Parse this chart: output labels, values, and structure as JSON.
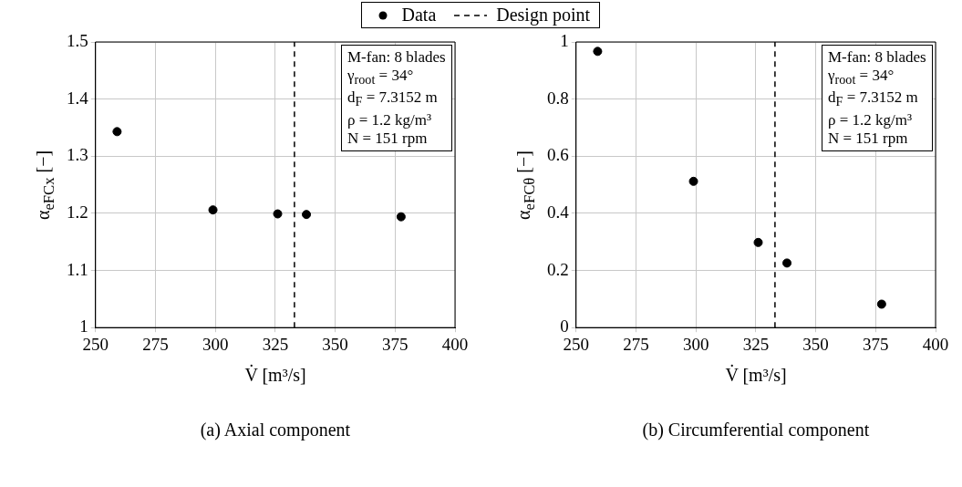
{
  "chart_data": [
    {
      "type": "scatter",
      "title": "(a) Axial component",
      "xlabel": "V̇ [m³/s]",
      "ylabel": "α$_{eFCx}$ [−]",
      "x": [
        259,
        299,
        326,
        338,
        377.5
      ],
      "series": [
        {
          "name": "Data",
          "color": "#000000",
          "values": [
            1.343,
            1.206,
            1.199,
            1.198,
            1.194
          ]
        }
      ],
      "xlim": [
        250,
        400
      ],
      "xticks": [
        250,
        275,
        300,
        325,
        350,
        375,
        400
      ],
      "ylim": [
        1,
        1.5
      ],
      "yticks": [
        1,
        1.1,
        1.2,
        1.3,
        1.4,
        1.5
      ],
      "ref_lines": [
        {
          "axis": "x",
          "value": 333,
          "label": "Design point",
          "color": "#000000",
          "line_style": "dashed"
        }
      ],
      "annotations": [
        "M-fan: 8 blades\nγ$_{root}$ = 34°\nd$_{F}$ = 7.3152 m\nρ = 1.2 kg/m³\nN = 151 rpm"
      ],
      "grid": true,
      "legend": "top",
      "marker": "circle"
    },
    {
      "type": "scatter",
      "title": "(b) Circumferential component",
      "xlabel": "V̇ [m³/s]",
      "ylabel": "α$_{eFCθ}$ [−]",
      "x": [
        259,
        299,
        326,
        338,
        377.5
      ],
      "series": [
        {
          "color": "#000000",
          "values": [
            0.967,
            0.512,
            0.298,
            0.226,
            0.082
          ]
        }
      ],
      "xlim": [
        250,
        400
      ],
      "xticks": [
        250,
        275,
        300,
        325,
        350,
        375,
        400
      ],
      "ylim": [
        0,
        1
      ],
      "yticks": [
        0,
        0.2,
        0.4,
        0.6,
        0.8,
        1
      ],
      "ref_lines": [
        {
          "axis": "x",
          "value": 333,
          "color": "#000000",
          "line_style": "dashed"
        }
      ],
      "annotations": [
        "M-fan: 8 blades\nγ$_{root}$ = 34°\nd$_{F}$ = 7.3152 m\nρ = 1.2 kg/m³\nN = 151 rpm"
      ],
      "grid": true,
      "legend": false,
      "marker": "circle"
    }
  ]
}
